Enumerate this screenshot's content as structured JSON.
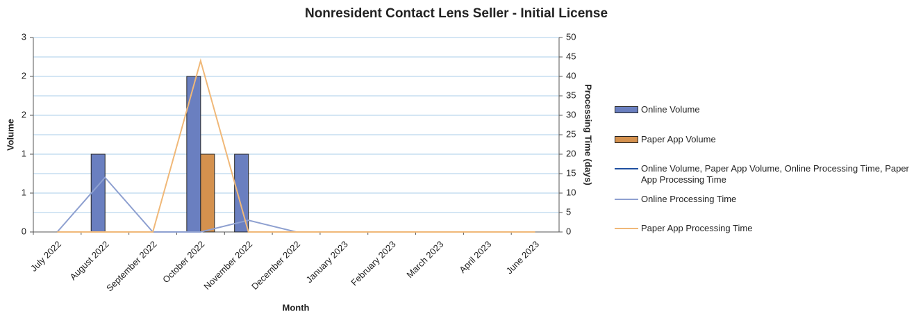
{
  "chart_data": {
    "type": "bar",
    "title": "Nonresident Contact Lens Seller - Initial License",
    "x_label": "Month",
    "y_label": "Volume",
    "y2_label": "Processing Time (days)",
    "categories": [
      "July 2022",
      "August 2022",
      "September 2022",
      "October 2022",
      "November 2022",
      "December 2022",
      "January 2023",
      "February 2023",
      "March 2023",
      "April 2023",
      "June 2023"
    ],
    "series": [
      {
        "name": "Online Volume",
        "type": "bar",
        "color": "#6a7fc0",
        "values": [
          0,
          1,
          0,
          2,
          1,
          0,
          0,
          0,
          0,
          0,
          0
        ]
      },
      {
        "name": "Paper App Volume",
        "type": "bar",
        "color": "#d4914e",
        "values": [
          0,
          0,
          0,
          1,
          0,
          0,
          0,
          0,
          0,
          0,
          0
        ]
      },
      {
        "name": "Online Volume, Paper App Volume, Online Processing Time, Paper App Processing Time",
        "type": "line",
        "axis": "y2",
        "color": "#1f4fa0",
        "values": [
          null,
          null,
          null,
          null,
          null,
          null,
          null,
          null,
          null,
          null,
          null
        ]
      },
      {
        "name": "Online Processing Time",
        "type": "line",
        "axis": "y2",
        "color": "#8ea0d0",
        "values": [
          0,
          14,
          0,
          0,
          3,
          0,
          0,
          0,
          0,
          0,
          0
        ]
      },
      {
        "name": "Paper App Processing Time",
        "type": "line",
        "axis": "y2",
        "color": "#f0b878",
        "values": [
          0,
          0,
          0,
          44,
          0,
          0,
          0,
          0,
          0,
          0,
          0
        ]
      }
    ],
    "ylim": [
      0,
      2.5
    ],
    "yticks": [
      0,
      {
        "value": 0.5,
        "label": "1"
      },
      1,
      {
        "value": 1.5,
        "label": "2"
      },
      2,
      {
        "value": 2.5,
        "label": "3"
      }
    ],
    "y2lim": [
      0,
      50
    ],
    "y2ticks": [
      0,
      5,
      10,
      15,
      20,
      25,
      30,
      35,
      40,
      45,
      50
    ],
    "grid": true,
    "legend": "right"
  }
}
